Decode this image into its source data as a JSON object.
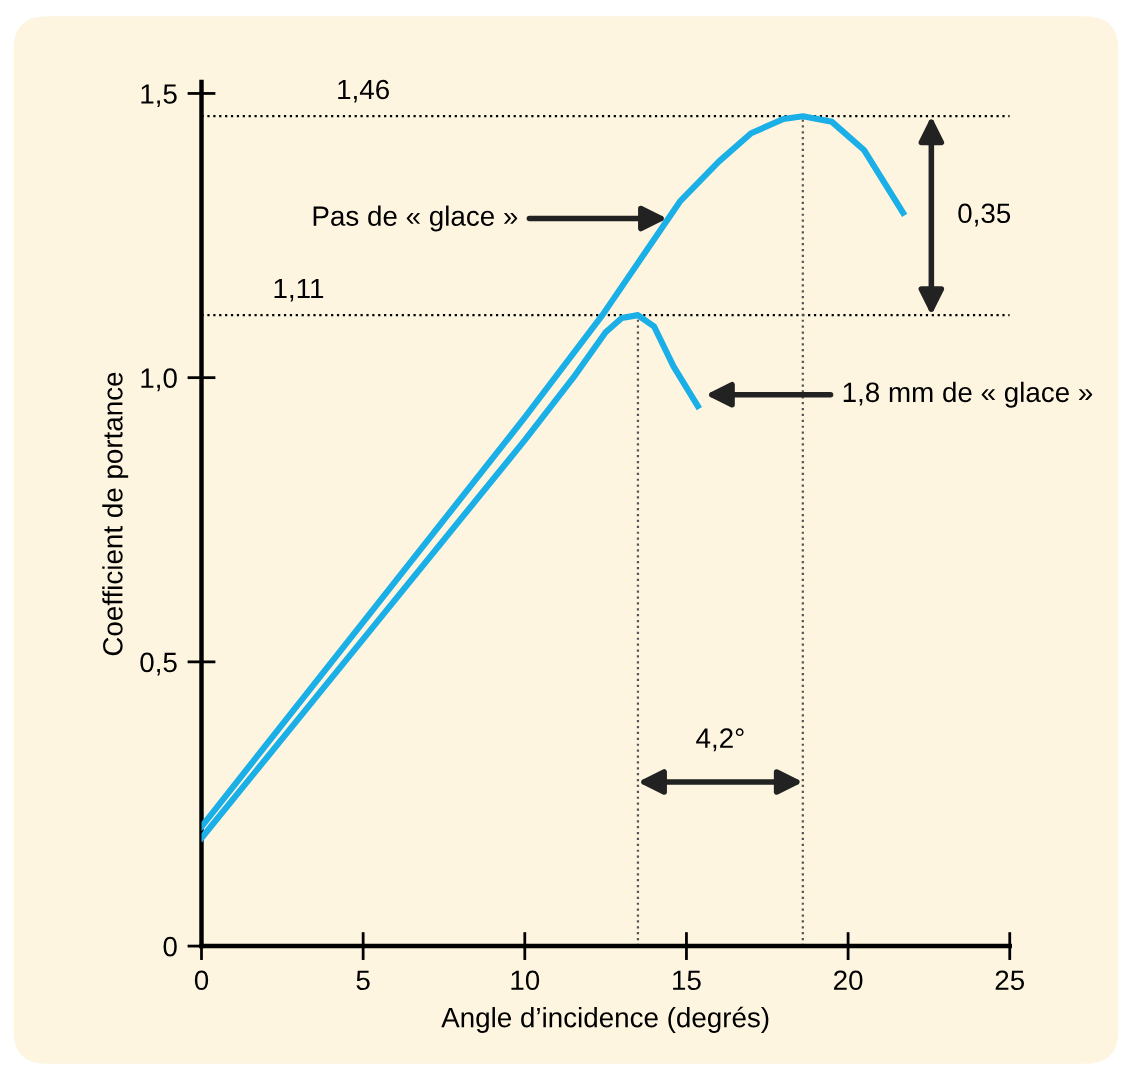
{
  "chart_data": {
    "type": "line",
    "xlabel": "Angle d’incidence (degrés)",
    "ylabel": "Coefficient de portance",
    "xlim": [
      0,
      25
    ],
    "xticks": [
      0,
      5,
      10,
      15,
      20,
      25
    ],
    "ylim": [
      0,
      1.52
    ],
    "yticks": [
      0,
      {
        "value": 0.5,
        "label": "0,5"
      },
      {
        "value": 1.0,
        "label": "1,0"
      },
      {
        "value": 1.5,
        "label": "1,5"
      }
    ],
    "grid": false,
    "marker": "none",
    "line_style": "solid",
    "series": [
      {
        "color": "#1aafe6",
        "x": [
          0,
          5,
          10,
          12.4,
          14.8,
          16,
          17,
          18,
          18.6,
          19.5,
          20.5,
          21.7
        ],
        "values": [
          0.21,
          0.57,
          0.93,
          1.11,
          1.31,
          1.38,
          1.43,
          1.455,
          1.46,
          1.45,
          1.4,
          1.29
        ]
      },
      {
        "color": "#1aafe6",
        "x": [
          0,
          5,
          10,
          11.5,
          12.5,
          13.0,
          13.5,
          14.0,
          14.6,
          15.35
        ],
        "values": [
          0.19,
          0.54,
          0.89,
          1.0,
          1.08,
          1.105,
          1.11,
          1.09,
          1.02,
          0.95
        ]
      }
    ],
    "ref_lines": [
      {
        "axis": "y",
        "value": 1.46,
        "label": "1,46",
        "color": "#000000",
        "line_style": "dotted"
      },
      {
        "axis": "y",
        "value": 1.11,
        "label": "1,11",
        "color": "#000000",
        "line_style": "dotted"
      },
      {
        "axis": "x",
        "value": 18.6,
        "color": "#555555",
        "line_style": "dotted"
      },
      {
        "axis": "x",
        "value": 13.5,
        "color": "#555555",
        "line_style": "dotted"
      }
    ],
    "annotations": [
      {
        "text": "Pas de « glace »",
        "x": 14.4,
        "y": 1.28
      },
      {
        "text": "1,8 mm de « glace »",
        "x": 15.6,
        "y": 0.97
      },
      "0,35",
      "4,2°"
    ]
  }
}
